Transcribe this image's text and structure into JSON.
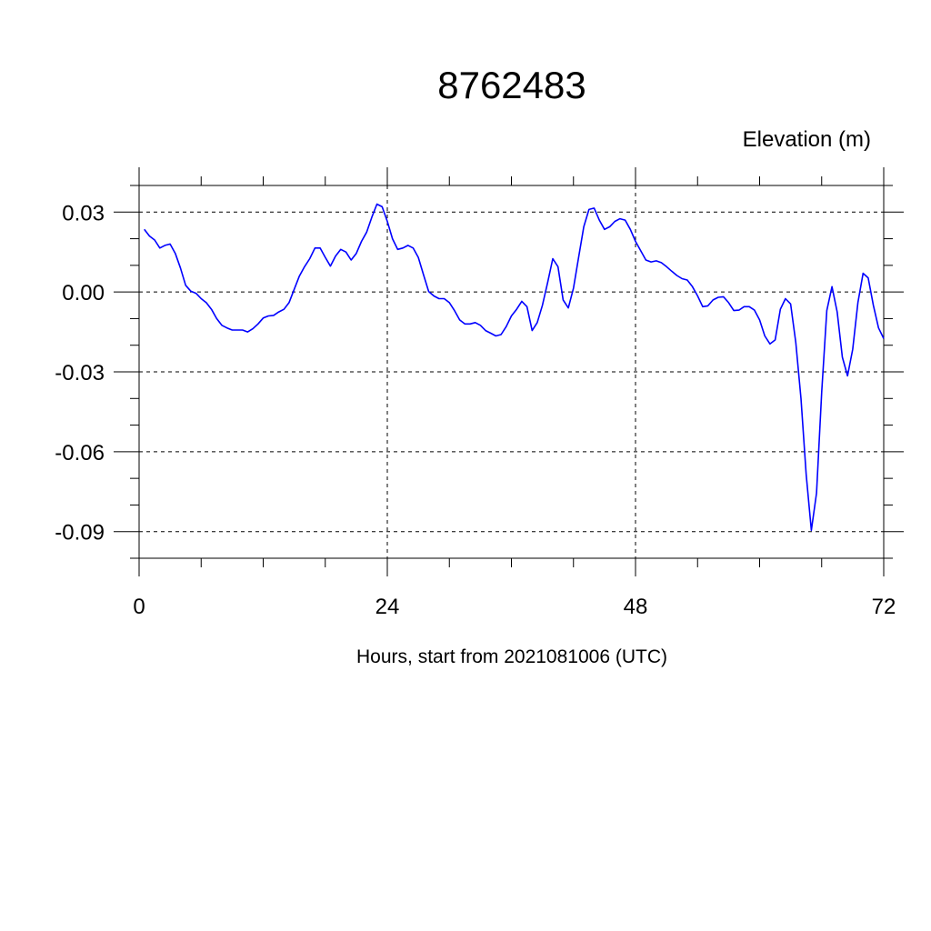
{
  "chart_data": {
    "type": "line",
    "title": "8762483",
    "ylabel": "Elevation (m)",
    "xlabel": "Hours, start from 2021081006 (UTC)",
    "xlim": [
      0,
      72
    ],
    "ylim": [
      -0.1,
      0.04
    ],
    "x_ticks": [
      0,
      24,
      48,
      72
    ],
    "x_tick_labels": [
      "0",
      "24",
      "48",
      "72"
    ],
    "y_ticks": [
      0.03,
      0.0,
      -0.03,
      -0.06,
      -0.09
    ],
    "y_tick_labels": [
      "0.03",
      "0.00",
      "-0.03",
      "-0.06",
      "-0.09"
    ],
    "grid": "dashed",
    "colors": {
      "series": "#0000ff",
      "axes": "#000000"
    },
    "series": [
      {
        "x": [
          0.5,
          1.0,
          1.5,
          2.0,
          2.5,
          3.0,
          3.5,
          4.0,
          4.5,
          5.0,
          5.5,
          6.0,
          6.5,
          7.0,
          7.5,
          8.0,
          8.5,
          9.0,
          9.5,
          10.0,
          10.5,
          11.0,
          11.5,
          12.0,
          12.5,
          13.0,
          13.5,
          14.0,
          14.5,
          15.0,
          15.5,
          16.0,
          16.5,
          17.0,
          17.5,
          18.0,
          18.5,
          19.0,
          19.5,
          20.0,
          20.5,
          21.0,
          21.5,
          22.0,
          22.5,
          23.0,
          23.5,
          24.0,
          24.5,
          25.0,
          25.5,
          26.0,
          26.5,
          27.0,
          27.5,
          28.0,
          28.5,
          29.0,
          29.5,
          30.0,
          30.5,
          31.0,
          31.5,
          32.0,
          32.5,
          33.0,
          33.5,
          34.0,
          34.5,
          35.0,
          35.5,
          36.0,
          36.5,
          37.0,
          37.5,
          38.0,
          38.5,
          39.0,
          39.5,
          40.0,
          40.5,
          41.0,
          41.5,
          42.0,
          42.5,
          43.0,
          43.5,
          44.0,
          44.5,
          45.0,
          45.5,
          46.0,
          46.5,
          47.0,
          47.5,
          48.0,
          48.5,
          49.0,
          49.5,
          50.0,
          50.5,
          51.0,
          51.5,
          52.0,
          52.5,
          53.0,
          53.5,
          54.0,
          54.5,
          55.0,
          55.5,
          56.0,
          56.5,
          57.0,
          57.5,
          58.0,
          58.5,
          59.0,
          59.5,
          60.0,
          60.5,
          61.0,
          61.5,
          62.0,
          62.5,
          63.0,
          63.5,
          64.0,
          64.5,
          65.0,
          65.5,
          66.0,
          66.5,
          67.0,
          67.5,
          68.0,
          68.5,
          69.0,
          69.5,
          70.0,
          70.5,
          71.0,
          71.5,
          72.0
        ],
        "y": [
          0.0235,
          0.021,
          0.0195,
          0.0165,
          0.0175,
          0.018,
          0.0145,
          0.009,
          0.0025,
          0.0003,
          -0.0005,
          -0.0025,
          -0.004,
          -0.0065,
          -0.01,
          -0.0125,
          -0.0135,
          -0.0143,
          -0.0143,
          -0.0143,
          -0.015,
          -0.0138,
          -0.012,
          -0.0098,
          -0.009,
          -0.0088,
          -0.0075,
          -0.0065,
          -0.004,
          0.001,
          0.006,
          0.0095,
          0.0125,
          0.0165,
          0.0165,
          0.013,
          0.0097,
          0.0135,
          0.016,
          0.015,
          0.012,
          0.0145,
          0.019,
          0.0225,
          0.028,
          0.033,
          0.032,
          0.0265,
          0.02,
          0.016,
          0.0165,
          0.0175,
          0.0165,
          0.013,
          0.0065,
          0.0002,
          -0.0015,
          -0.0025,
          -0.0025,
          -0.004,
          -0.007,
          -0.0105,
          -0.012,
          -0.012,
          -0.0115,
          -0.0125,
          -0.0145,
          -0.0155,
          -0.0165,
          -0.016,
          -0.013,
          -0.009,
          -0.0065,
          -0.0035,
          -0.0055,
          -0.0145,
          -0.0115,
          -0.005,
          0.0035,
          0.0125,
          0.0095,
          -0.003,
          -0.006,
          0.0015,
          0.013,
          0.0245,
          0.031,
          0.0315,
          0.027,
          0.0235,
          0.0245,
          0.0265,
          0.0275,
          0.027,
          0.0235,
          0.019,
          0.0155,
          0.012,
          0.0113,
          0.0117,
          0.011,
          0.0095,
          0.0078,
          0.0062,
          0.005,
          0.0045,
          0.002,
          -0.0015,
          -0.0055,
          -0.0052,
          -0.003,
          -0.002,
          -0.0018,
          -0.004,
          -0.007,
          -0.0068,
          -0.0055,
          -0.0055,
          -0.0068,
          -0.0105,
          -0.0165,
          -0.0195,
          -0.018,
          -0.0065,
          -0.0025,
          -0.0045,
          -0.019,
          -0.04,
          -0.0685,
          -0.0895,
          -0.0755,
          -0.0375,
          -0.007,
          0.002,
          -0.0075,
          -0.0245,
          -0.0315,
          -0.0215,
          -0.004,
          0.007,
          0.0053,
          -0.005,
          -0.0135,
          -0.0175
        ]
      }
    ]
  }
}
